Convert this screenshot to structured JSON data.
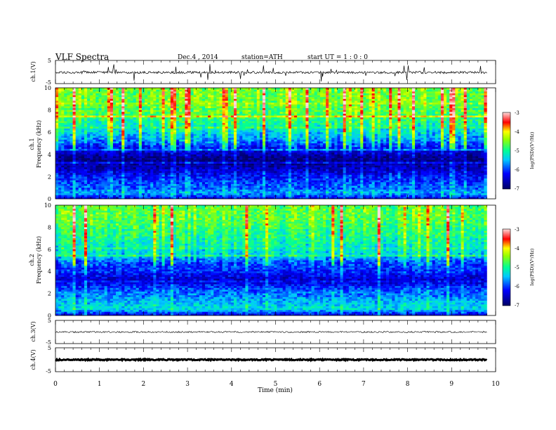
{
  "header": {
    "title": "VLF  Spectra",
    "date": "Dec.4  , 2014",
    "station": "station=ATH",
    "start": "start  UT  =   1  : 0  : 0"
  },
  "colors": {
    "low": "#000064",
    "mid_low": "#00c8ff",
    "mid": "#00ff96",
    "mid_high": "#ffff00",
    "high": "#ff0000",
    "top": "#ffdcdc",
    "trace": "#000000"
  },
  "chart_data": [
    {
      "type": "line",
      "panel": "ch1-waveform",
      "ylabel": "ch.1(V)",
      "ylim": [
        -5,
        5
      ],
      "yticks": [
        "5",
        "-5"
      ],
      "baseline": -0.2,
      "noise_amplitude": 0.5,
      "spike_amplitude": 3.5
    },
    {
      "type": "heatmap",
      "panel": "ch1-spectrogram",
      "ylabel": "Frequency  (kHz)",
      "channel_label": "ch.1",
      "ylim": [
        0,
        10
      ],
      "yticks": [
        "0",
        "2",
        "4",
        "6",
        "8",
        "10"
      ],
      "psd_profile": [
        {
          "f": 0.0,
          "psd": -6.3
        },
        {
          "f": 0.5,
          "psd": -5.6
        },
        {
          "f": 1.2,
          "psd": -5.9
        },
        {
          "f": 2.0,
          "psd": -6.2
        },
        {
          "f": 2.8,
          "psd": -6.6
        },
        {
          "f": 3.5,
          "psd": -6.9
        },
        {
          "f": 4.3,
          "psd": -6.4
        },
        {
          "f": 5.2,
          "psd": -5.7
        },
        {
          "f": 6.5,
          "psd": -5.1
        },
        {
          "f": 8.0,
          "psd": -4.6
        },
        {
          "f": 10.0,
          "psd": -4.5
        }
      ],
      "colorbar": {
        "label": "log(PSD)(V²/Hz)",
        "range": [
          -7,
          -3
        ],
        "ticks": [
          "-3",
          "-4",
          "-5",
          "-6",
          "-7"
        ]
      }
    },
    {
      "type": "heatmap",
      "panel": "ch2-spectrogram",
      "ylabel": "Frequency  (kHz)",
      "channel_label": "ch.2",
      "ylim": [
        0,
        10
      ],
      "yticks": [
        "0",
        "2",
        "4",
        "6",
        "8",
        "10"
      ],
      "psd_profile": [
        {
          "f": 0.0,
          "psd": -6.4
        },
        {
          "f": 0.6,
          "psd": -5.3
        },
        {
          "f": 1.5,
          "psd": -5.6
        },
        {
          "f": 2.3,
          "psd": -5.9
        },
        {
          "f": 3.2,
          "psd": -6.5
        },
        {
          "f": 4.0,
          "psd": -6.1
        },
        {
          "f": 4.8,
          "psd": -5.9
        },
        {
          "f": 5.6,
          "psd": -5.3
        },
        {
          "f": 7.0,
          "psd": -5.0
        },
        {
          "f": 8.5,
          "psd": -4.7
        },
        {
          "f": 10.0,
          "psd": -4.6
        }
      ],
      "colorbar": {
        "label": "log(PSD)(V²/Hz)",
        "range": [
          -7,
          -3
        ],
        "ticks": [
          "-3",
          "-4",
          "-5",
          "-6",
          "-7"
        ]
      }
    },
    {
      "type": "line",
      "panel": "ch3-waveform",
      "ylabel": "ch.3(V)",
      "ylim": [
        -5,
        5
      ],
      "yticks": [
        "5",
        "-5"
      ],
      "baseline": 0,
      "noise_amplitude": 0.35
    },
    {
      "type": "line",
      "panel": "ch4-waveform",
      "ylabel": "ch.4(V)",
      "ylim": [
        -5,
        5
      ],
      "yticks": [
        "5",
        "-5"
      ],
      "baseline": 0,
      "noise_amplitude": 0.25
    }
  ],
  "xaxis": {
    "label": "Time  (min)",
    "range": [
      0,
      10
    ],
    "data_end": 9.8,
    "ticks": [
      "0",
      "1",
      "2",
      "3",
      "4",
      "5",
      "6",
      "7",
      "8",
      "9",
      "10"
    ]
  }
}
